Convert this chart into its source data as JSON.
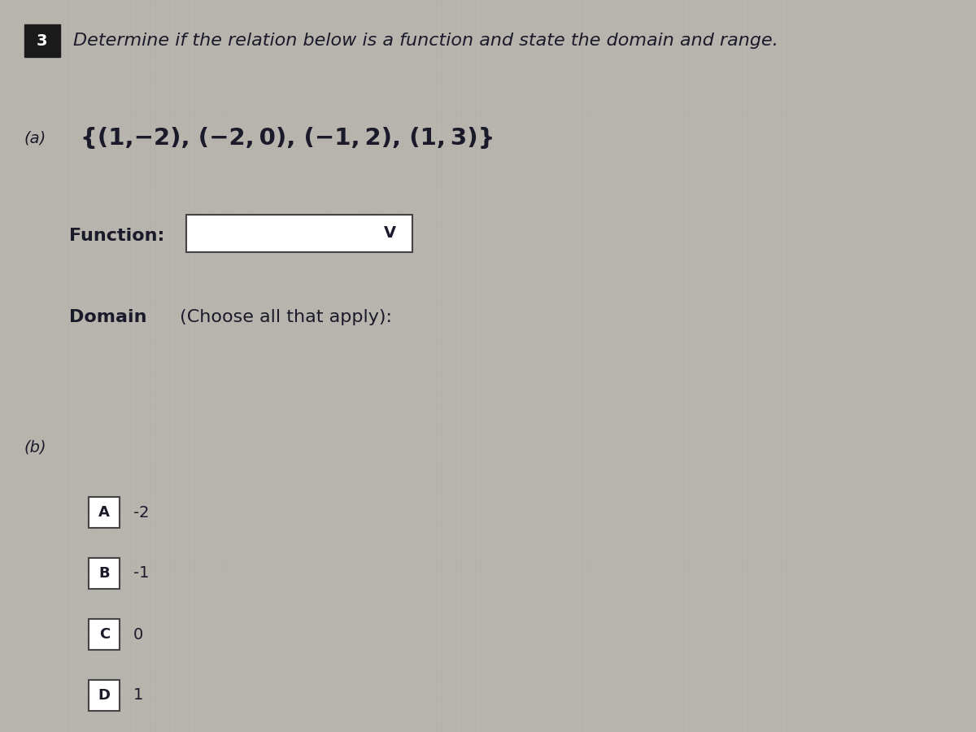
{
  "background_color": "#b8b4ae",
  "title_number": "3",
  "title_number_bg": "#1a1a1a",
  "title_text": "Determine if the relation below is a function and state the domain and range.",
  "part_a_label": "(a)",
  "part_a_set": "{(1,−2), (−2, 0), (−1, 2), (1, 3)}",
  "function_label_bold": "Function:",
  "domain_label_bold": "Domain",
  "domain_label_normal": " (Choose all that apply):",
  "part_b_label": "(b)",
  "choices": [
    {
      "letter": "A",
      "value": "-2"
    },
    {
      "letter": "B",
      "value": "-1"
    },
    {
      "letter": "C",
      "value": "0"
    },
    {
      "letter": "D",
      "value": "1"
    }
  ],
  "dropdown_chevron": "V",
  "text_color": "#1a1a2a",
  "box_color": "#ffffff",
  "box_border_color": "#444444",
  "number_box_color": "#1a1a1a",
  "number_text_color": "#ffffff",
  "grid_color_light": "#c8c4be",
  "grid_color_dark": "#a8a49e"
}
